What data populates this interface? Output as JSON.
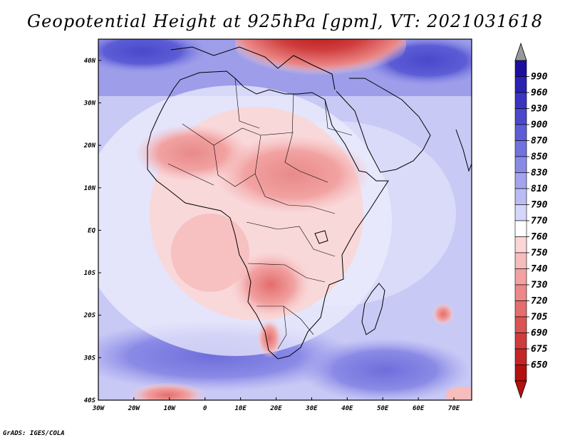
{
  "title": "Geopotential Height at 925hPa [gpm], VT: 2021031618",
  "credit": "GrADS: IGES/COLA",
  "map": {
    "region": "Africa",
    "lat_range": [
      -40,
      45
    ],
    "lon_range": [
      -30,
      75
    ],
    "lat_labels": [
      "40N",
      "30N",
      "20N",
      "10N",
      "EQ",
      "10S",
      "20S",
      "30S",
      "40S"
    ],
    "lon_labels": [
      "30W",
      "20W",
      "10W",
      "0",
      "10E",
      "20E",
      "30E",
      "40E",
      "50E",
      "60E",
      "70E"
    ]
  },
  "colorbar": {
    "levels": [
      "990",
      "960",
      "930",
      "900",
      "870",
      "850",
      "830",
      "810",
      "790",
      "770",
      "760",
      "750",
      "740",
      "730",
      "720",
      "705",
      "690",
      "675",
      "650"
    ],
    "colors": [
      "#1d0f9e",
      "#2a22b0",
      "#3a34c0",
      "#4a48cc",
      "#5d5dd6",
      "#7272de",
      "#8a8ae6",
      "#a3a3ee",
      "#bcbcf4",
      "#d6d6fa",
      "#ffffff",
      "#fbd6d6",
      "#f7bcbc",
      "#f2a2a2",
      "#ec8888",
      "#e46d6d",
      "#da5454",
      "#cf3c3c",
      "#c42626",
      "#b31010"
    ],
    "over_color": "#999999",
    "under_color": "#b31010"
  }
}
